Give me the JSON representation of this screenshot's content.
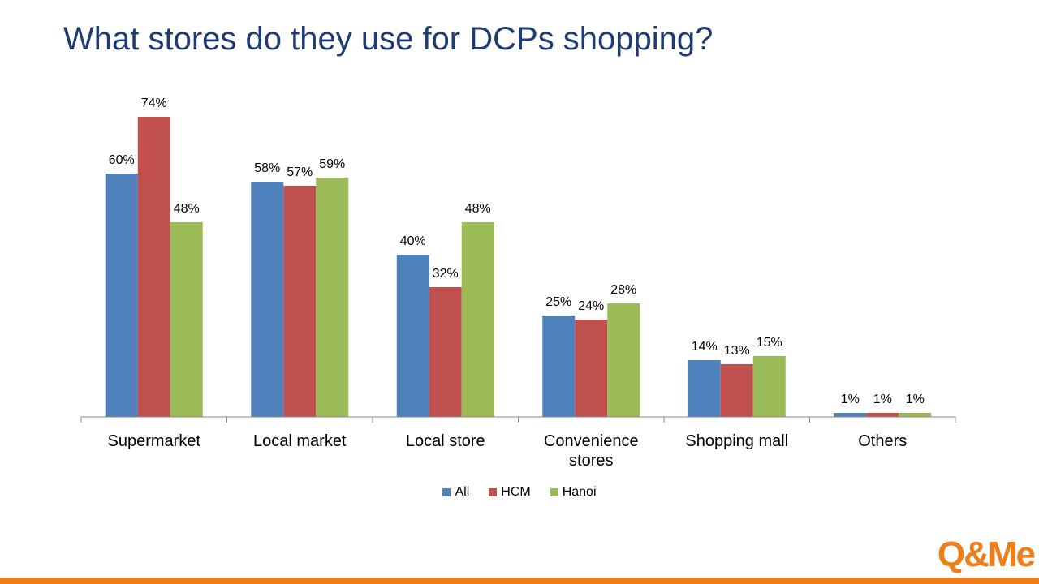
{
  "page": {
    "title": "What stores do they use for DCPs shopping?",
    "logo_text": "Q&Me",
    "footer_color": "#ef7d1a"
  },
  "chart_data": {
    "type": "bar",
    "title": "What stores do they use for DCPs shopping?",
    "categories": [
      [
        "Supermarket"
      ],
      [
        "Local market"
      ],
      [
        "Local store"
      ],
      [
        "Convenience",
        "stores"
      ],
      [
        "Shopping mall"
      ],
      [
        "Others"
      ]
    ],
    "series": [
      {
        "name": "All",
        "color": "#4f81bd",
        "values": [
          60,
          58,
          40,
          25,
          14,
          1
        ],
        "labels": [
          "60%",
          "58%",
          "40%",
          "25%",
          "14%",
          "1%"
        ]
      },
      {
        "name": "HCM",
        "color": "#c0504d",
        "values": [
          74,
          57,
          32,
          24,
          13,
          1
        ],
        "labels": [
          "74%",
          "57%",
          "32%",
          "24%",
          "13%",
          "1%"
        ]
      },
      {
        "name": "Hanoi",
        "color": "#9bbb59",
        "values": [
          48,
          59,
          48,
          28,
          15,
          1
        ],
        "labels": [
          "48%",
          "59%",
          "48%",
          "28%",
          "15%",
          "1%"
        ]
      }
    ],
    "ylim": [
      0,
      74
    ],
    "value_suffix": "%",
    "grid": false,
    "legend_position": "bottom"
  }
}
